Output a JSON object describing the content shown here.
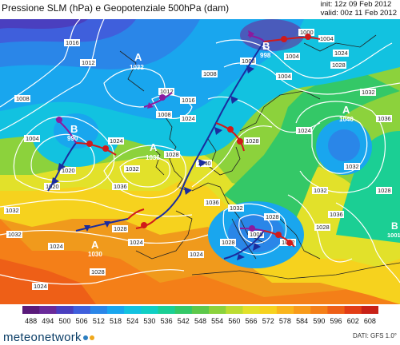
{
  "header": {
    "title": "Pressione SLM (hPa) e Geopotenziale 500hPa (dam)",
    "init": "init: 12z 09 Feb 2012",
    "valid": "valid: 00z 11 Feb 2012"
  },
  "isobar_labels": [
    "1016",
    "1012",
    "1008",
    "1008",
    "1004",
    "1024",
    "1032",
    "1012",
    "1016",
    "1024",
    "1008",
    "1004",
    "1000",
    "1004",
    "1004",
    "1008",
    "1024",
    "1028",
    "1032",
    "1036",
    "1028",
    "1040",
    "1020",
    "1020",
    "1032",
    "1036",
    "1028",
    "1024",
    "1032",
    "1036",
    "1028",
    "1028",
    "1024",
    "1028",
    "1032",
    "1036",
    "1028",
    "1032",
    "1008",
    "1012",
    "1024",
    "1028",
    "1028",
    "1024",
    "1032",
    "1024"
  ],
  "pressure_centers": [
    {
      "type": "A",
      "value": "1032"
    },
    {
      "type": "B",
      "value": "990"
    },
    {
      "type": "A",
      "value": "1036"
    },
    {
      "type": "B",
      "value": "998"
    },
    {
      "type": "A",
      "value": "1040"
    },
    {
      "type": "A",
      "value": "1030"
    },
    {
      "type": "B",
      "value": "1001"
    }
  ],
  "colorbar": {
    "ticks": [
      "488",
      "494",
      "500",
      "506",
      "512",
      "518",
      "524",
      "530",
      "536",
      "542",
      "548",
      "554",
      "560",
      "566",
      "572",
      "578",
      "584",
      "590",
      "596",
      "602",
      "608"
    ],
    "colors": [
      "#5a1a7a",
      "#6a2a9a",
      "#4a3fbf",
      "#3f5fdc",
      "#2a86e8",
      "#19a6ee",
      "#12c2e0",
      "#10cfc4",
      "#1bcf94",
      "#34c867",
      "#5dc84a",
      "#8cd23c",
      "#bcdc32",
      "#e2e12a",
      "#f6d21e",
      "#f9b51c",
      "#f89b1a",
      "#f47f18",
      "#ee5f17",
      "#e23d16",
      "#c82117"
    ]
  },
  "footer": {
    "brand": "meteonetwork",
    "credit": "DATI:  GFS  1.0°"
  }
}
